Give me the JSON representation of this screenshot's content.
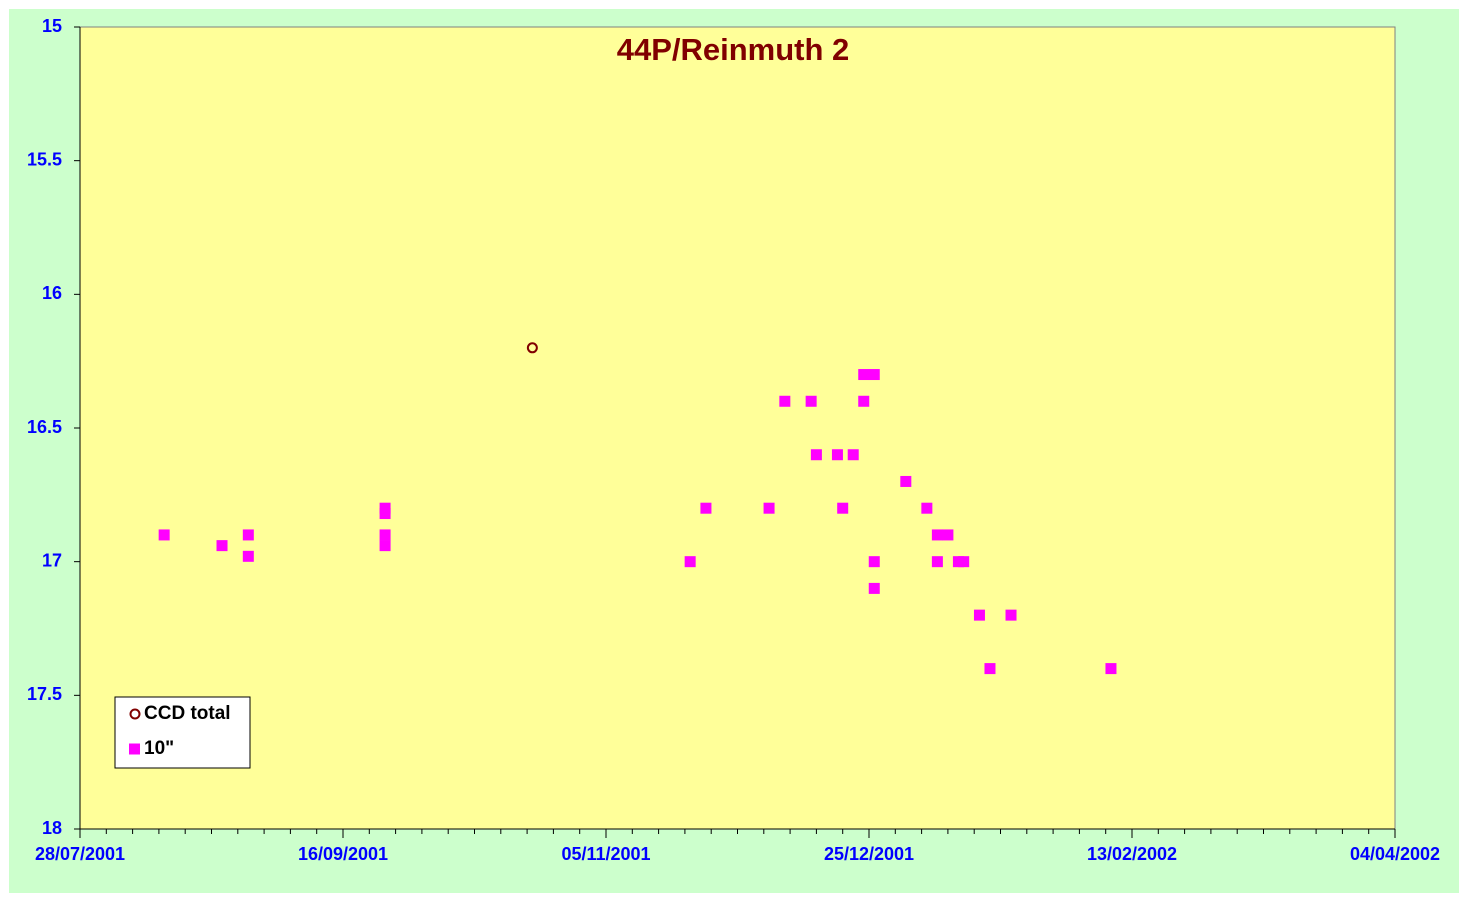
{
  "chart_data": {
    "type": "scatter",
    "title": "44P/Reinmuth 2",
    "xlim": [
      "28/07/2001",
      "04/04/2002"
    ],
    "xticks": [
      "28/07/2001",
      "16/09/2001",
      "05/11/2001",
      "25/12/2001",
      "13/02/2002",
      "04/04/2002"
    ],
    "ylim": [
      15,
      18
    ],
    "y_inverted": true,
    "yticks": [
      15,
      15.5,
      16,
      16.5,
      17,
      17.5,
      18
    ],
    "legend": "lower left",
    "series": [
      {
        "name": "CCD total",
        "color": "#800000",
        "marker": "circle",
        "x": [
          "22/10/2001"
        ],
        "values": [
          16.2
        ]
      },
      {
        "name": "10\"",
        "color": "#ff00ff",
        "marker": "square",
        "x": [
          "13/08/2001",
          "24/08/2001",
          "29/08/2001",
          "29/08/2001",
          "24/09/2001",
          "24/09/2001",
          "24/09/2001",
          "24/09/2001",
          "21/11/2001",
          "24/11/2001",
          "06/12/2001",
          "09/12/2001",
          "14/12/2001",
          "15/12/2001",
          "19/12/2001",
          "20/12/2001",
          "22/12/2001",
          "24/12/2001",
          "24/12/2001",
          "26/12/2001",
          "26/12/2001",
          "26/12/2001",
          "01/01/2002",
          "05/01/2002",
          "07/01/2002",
          "07/01/2002",
          "09/01/2002",
          "11/01/2002",
          "12/01/2002",
          "15/01/2002",
          "17/01/2002",
          "21/01/2002",
          "09/02/2002"
        ],
        "values": [
          16.9,
          16.94,
          16.9,
          16.98,
          16.8,
          16.82,
          16.9,
          16.94,
          17.0,
          16.8,
          16.8,
          16.4,
          16.4,
          16.6,
          16.6,
          16.8,
          16.6,
          16.3,
          16.4,
          16.3,
          17.0,
          17.1,
          16.7,
          16.8,
          16.9,
          17.0,
          16.9,
          17.0,
          17.0,
          17.2,
          17.4,
          17.2,
          17.4
        ]
      }
    ]
  }
}
